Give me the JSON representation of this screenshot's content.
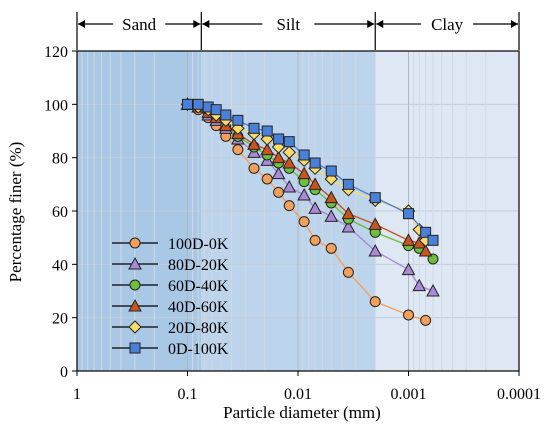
{
  "chart_data": {
    "type": "scatter",
    "xscale": "log",
    "xaxis_reversed": true,
    "xlabel": "Particle diameter (mm)",
    "ylabel": "Percentage finer (%)",
    "xlim": [
      1,
      0.0001
    ],
    "ylim": [
      0,
      120
    ],
    "xticks": [
      1,
      0.1,
      0.01,
      0.001,
      0.0001
    ],
    "xtick_labels": [
      "1",
      "0.1",
      "0.01",
      "0.001",
      "0.0001"
    ],
    "yticks": [
      0,
      20,
      40,
      60,
      80,
      100,
      120
    ],
    "ytick_labels": [
      "0",
      "20",
      "40",
      "60",
      "80",
      "100",
      "120"
    ],
    "grid": true,
    "legend_position": "bottom-left",
    "zones": [
      {
        "label": "Sand",
        "from": 1,
        "to": 0.075,
        "color": "#a9c8e6"
      },
      {
        "label": "Silt",
        "from": 0.075,
        "to": 0.002,
        "color": "#bcd4ec"
      },
      {
        "label": "Clay",
        "from": 0.002,
        "to": 0.0001,
        "color": "#dde8f4"
      }
    ],
    "series": [
      {
        "name": "100D-0K",
        "marker": "circle",
        "color": "#f5a05a",
        "x": [
          0.1,
          0.08,
          0.065,
          0.055,
          0.045,
          0.035,
          0.025,
          0.019,
          0.015,
          0.012,
          0.0088,
          0.007,
          0.005,
          0.0035,
          0.002,
          0.001,
          0.0007
        ],
        "y": [
          100,
          98,
          95,
          92,
          88,
          83,
          76,
          72,
          67,
          62,
          56,
          49,
          46,
          37,
          26,
          21,
          19
        ]
      },
      {
        "name": "80D-20K",
        "marker": "triangle",
        "color": "#a98ad6",
        "x": [
          0.1,
          0.08,
          0.065,
          0.055,
          0.045,
          0.035,
          0.025,
          0.019,
          0.015,
          0.012,
          0.0088,
          0.007,
          0.005,
          0.0035,
          0.002,
          0.001,
          0.0008,
          0.0006
        ],
        "y": [
          100,
          99,
          96,
          94,
          91,
          87,
          82,
          79,
          74,
          69,
          66,
          61,
          58,
          54,
          45,
          38,
          32,
          30
        ]
      },
      {
        "name": "60D-40K",
        "marker": "circle",
        "color": "#6fbf3f",
        "x": [
          0.1,
          0.08,
          0.065,
          0.055,
          0.045,
          0.035,
          0.025,
          0.019,
          0.015,
          0.012,
          0.0088,
          0.007,
          0.005,
          0.0035,
          0.002,
          0.001,
          0.0008,
          0.0006
        ],
        "y": [
          100,
          99,
          97,
          95,
          92,
          88,
          84,
          81,
          78,
          76,
          71,
          68,
          63,
          57,
          52,
          47,
          46,
          42
        ]
      },
      {
        "name": "40D-60K",
        "marker": "triangle",
        "color": "#c9541e",
        "x": [
          0.1,
          0.08,
          0.065,
          0.055,
          0.045,
          0.035,
          0.025,
          0.019,
          0.015,
          0.012,
          0.0088,
          0.007,
          0.005,
          0.0035,
          0.002,
          0.001,
          0.0008,
          0.0007
        ],
        "y": [
          100,
          99,
          97,
          95,
          92,
          89,
          85,
          83,
          80,
          78,
          74,
          70,
          65,
          59,
          55,
          49,
          48,
          45
        ]
      },
      {
        "name": "20D-80K",
        "marker": "diamond",
        "color": "#fddc6a",
        "x": [
          0.1,
          0.08,
          0.065,
          0.055,
          0.045,
          0.035,
          0.025,
          0.019,
          0.015,
          0.012,
          0.0088,
          0.007,
          0.005,
          0.0035,
          0.002,
          0.001,
          0.0008,
          0.0007
        ],
        "y": [
          100,
          99,
          98,
          96,
          94,
          91,
          89,
          87,
          84,
          82,
          79,
          76,
          72,
          68,
          64,
          60,
          53,
          49
        ]
      },
      {
        "name": "0D-100K",
        "marker": "square",
        "color": "#4a80d8",
        "x": [
          0.1,
          0.08,
          0.065,
          0.055,
          0.045,
          0.035,
          0.025,
          0.019,
          0.015,
          0.012,
          0.0088,
          0.007,
          0.005,
          0.0035,
          0.002,
          0.001,
          0.0007,
          0.0006
        ],
        "y": [
          100,
          100,
          99,
          98,
          96,
          94,
          91,
          90,
          87,
          86,
          81,
          78,
          75,
          70,
          65,
          59,
          52,
          49
        ]
      }
    ]
  }
}
